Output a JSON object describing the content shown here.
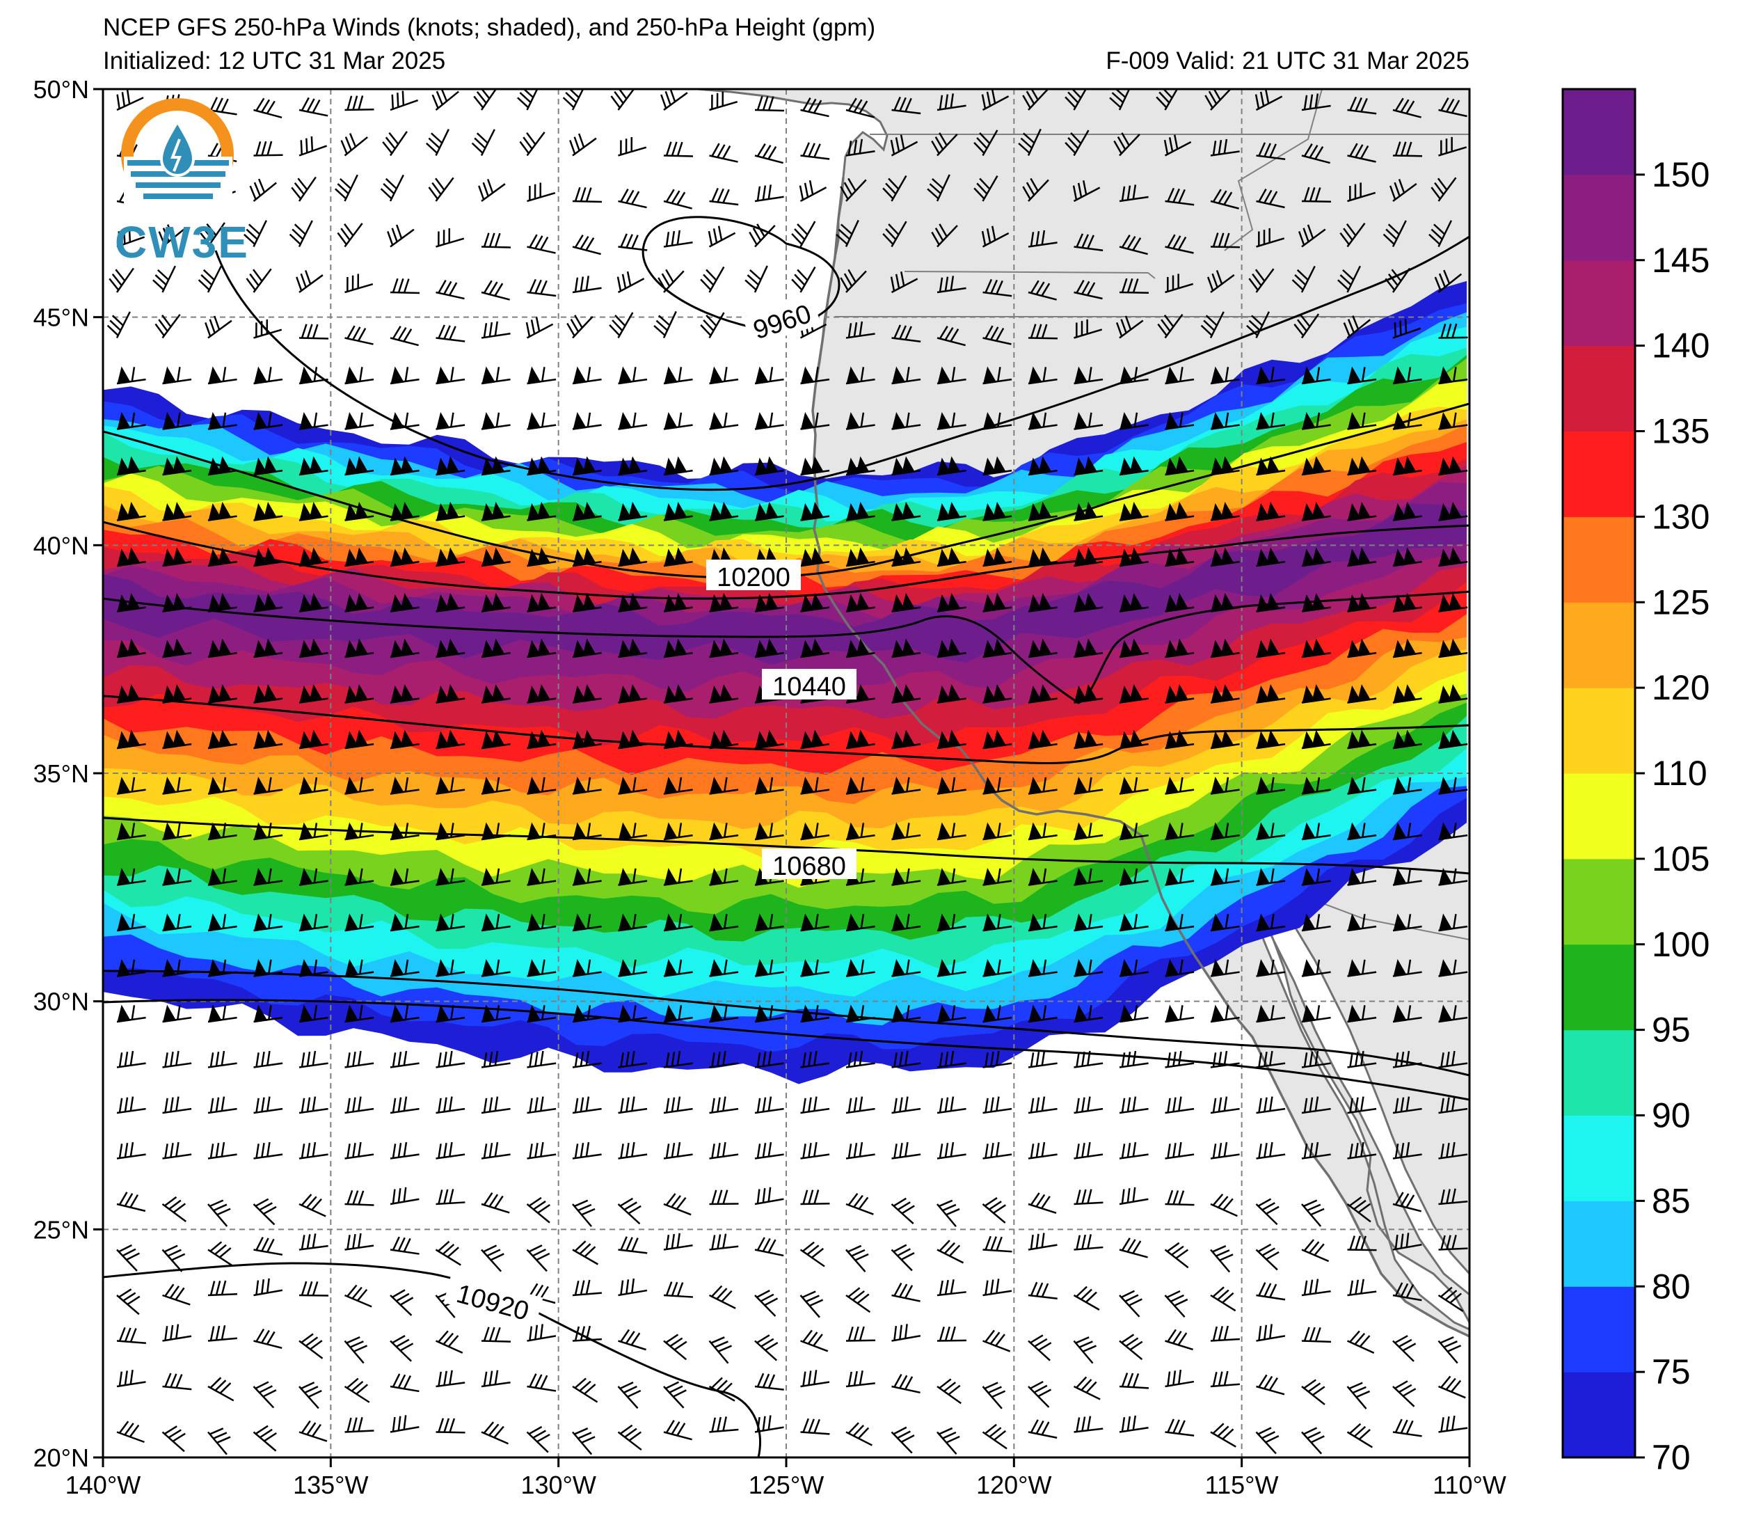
{
  "header": {
    "title_line1": "NCEP GFS 250-hPa Winds (knots; shaded), and 250-hPa Height (gpm)",
    "initialized": "Initialized: 12 UTC 31 Mar 2025",
    "valid": "F-009  Valid: 21 UTC 31 Mar 2025"
  },
  "logo": {
    "text": "CW3E"
  },
  "map": {
    "lon_range": [
      -140,
      -110
    ],
    "lat_range": [
      20,
      50
    ],
    "lon_labels": [
      "140°W",
      "135°W",
      "130°W",
      "125°W",
      "120°W",
      "115°W",
      "110°W"
    ],
    "lat_labels": [
      "50°N",
      "45°N",
      "40°N",
      "35°N",
      "30°N",
      "25°N",
      "20°N"
    ],
    "land_color": "#e6e6e6",
    "ocean_color": "#ffffff"
  },
  "contour_labels": [
    "9960",
    "10200",
    "10440",
    "10680",
    "10920"
  ],
  "colorbar": {
    "ticks": [
      "70",
      "75",
      "80",
      "85",
      "90",
      "95",
      "100",
      "105",
      "110",
      "120",
      "125",
      "130",
      "135",
      "140",
      "145",
      "150"
    ],
    "colors": [
      "#1e1ed6",
      "#1e3cff",
      "#1ec8ff",
      "#1ef5f0",
      "#1ee6aa",
      "#1eb41e",
      "#78d21e",
      "#f0ff1e",
      "#ffd21e",
      "#ffaa1e",
      "#ff781e",
      "#ff1e1e",
      "#d21e3c",
      "#aa1e6e",
      "#8c1e82",
      "#6e1e8c"
    ]
  }
}
